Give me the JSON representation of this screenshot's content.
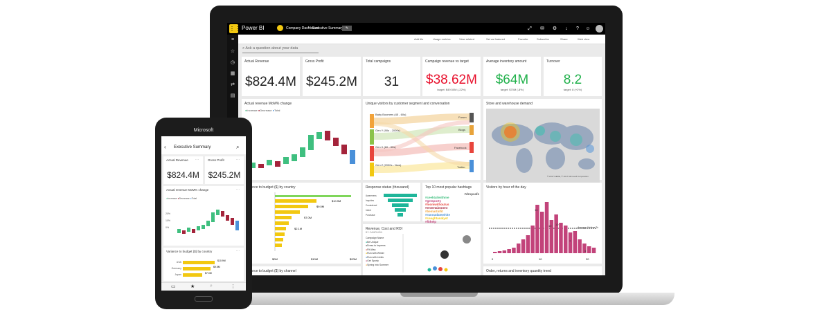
{
  "laptop": {
    "app_name": "Power BI",
    "breadcrumb": {
      "workspace": "Company Dashboard",
      "report": "Executive Summary"
    },
    "commands": [
      "Add tile",
      "Usage metrics",
      "View related",
      "Set as featured",
      "Favorite",
      "Subscribe",
      "Share",
      "Web view"
    ],
    "qa_placeholder": "Ask a question about your data",
    "tiles": {
      "actual_revenue": {
        "title": "Actual Revenue",
        "value": "$824.4M"
      },
      "gross_profit": {
        "title": "Gross Profit",
        "value": "$245.2M"
      },
      "total_campaigns": {
        "title": "Total campaigns",
        "value": "31"
      },
      "campaign_revenue": {
        "title": "Campaign revenue vs target",
        "value": "$38.62M",
        "sub1": "target: $49.50M (-22%)",
        "color": "#e8112d"
      },
      "avg_inventory": {
        "title": "Average inventory amount",
        "value": "$64M",
        "sub1": "target: $70M (-8%)",
        "color": "#22b14c"
      },
      "turnover": {
        "title": "Turnover",
        "value": "8.2",
        "sub1": "target: 8 (+2%)",
        "color": "#22b14c"
      },
      "mom_change": {
        "title": "Actual revenue MoM% change",
        "legend": [
          "Increase",
          "Decrease",
          "Total"
        ]
      },
      "unique_visitors": {
        "title": "Unique visitors by customer segment and conversation",
        "left": [
          "Baby Boomers (45 - 60s)",
          "Gen Y (90s - 2000s)",
          "Gen X (60 - 80s)",
          "Gen Z (2000s - Now)"
        ],
        "right": [
          "Forum",
          "Blogs",
          "Facebook",
          "Twitter"
        ]
      },
      "store_demand": {
        "title": "Store and warehouse demand",
        "attribution": "© 2017 HERE, © 2017 Microsoft Corporation"
      },
      "variance_country": {
        "title": "Variance to budget ($) by country",
        "labels": [
          "$10.9M",
          "$9.5M",
          "$7.0M",
          "$2.1M"
        ],
        "axis": [
          "$0M",
          "$10M",
          "$20M"
        ]
      },
      "response_status": {
        "title": "Response status (thousand)",
        "labels": [
          "Awareness",
          "Inquiries",
          "Considered",
          "Intent",
          "Purchase"
        ]
      },
      "hashtags": {
        "title": "Top 10 most popular hashtags",
        "words": [
          "#dropsafe",
          "#ceektaliwithme",
          "#getsporty",
          "#loomwithoutus",
          "#entertainment",
          "#bemartinfit",
          "#runoutlatewhite",
          "#caughtanalyst",
          "#fithelp"
        ]
      },
      "visitors_hour": {
        "title": "Visitors by hour of the day",
        "bar_labels": [
          "14",
          "10",
          "10",
          "7",
          "4"
        ],
        "avg_label": "Average Visitors To",
        "axis": [
          "0",
          "10",
          "20"
        ]
      },
      "revenue_cost_roi": {
        "title": "Revenue, Cost and ROI",
        "subtitle": "BY CAMPAIGN",
        "legend_title": "Campaign Name",
        "legend": [
          "Be Unique",
          "Dress to Impress",
          "Fit Alley",
          "Run with Winter",
          "Run with Limits",
          "Get Sporty",
          "Spring into Summer"
        ]
      },
      "variance_channel": {
        "title": "Variance to budget ($) by channel"
      },
      "order_returns": {
        "title": "Order, returns and inventory quantity trend"
      }
    }
  },
  "phone": {
    "brand": "Microsoft",
    "header_title": "Executive Summary",
    "tiles": {
      "actual_revenue": {
        "title": "Actual Revenue",
        "value": "$824.4M"
      },
      "gross_profit": {
        "title": "Gross Profit",
        "value": "$245.2M"
      },
      "mom": {
        "title": "Actual revenue MoM% change",
        "legend": [
          "Increase",
          "Decrease",
          "Total"
        ],
        "axis": [
          "20%",
          "10%",
          "0%"
        ]
      },
      "variance": {
        "title": "Variance to budget ($) by country",
        "rows": [
          {
            "label": "USA",
            "value": "$10.9M"
          },
          {
            "label": "Germany",
            "value": "$9.5M"
          },
          {
            "label": "Japan",
            "value": "$7.0M"
          }
        ]
      }
    }
  },
  "colors": {
    "accent": "#f2c811",
    "increase": "#3fbf7f",
    "decrease": "#a4243b",
    "total": "#4a90d9",
    "pink": "#c2437a",
    "funnel": "#1fb69a"
  }
}
